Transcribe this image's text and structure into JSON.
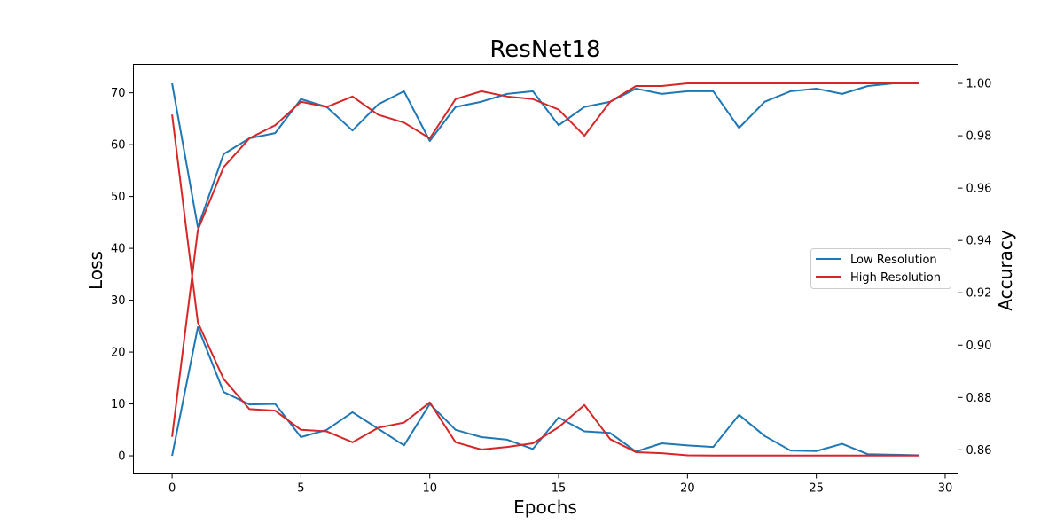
{
  "chart_data": {
    "type": "line",
    "title": "ResNet18",
    "xlabel": "Epochs",
    "ylabel_left": "Loss",
    "ylabel_right": "Accuracy",
    "x": [
      0,
      1,
      2,
      3,
      4,
      5,
      6,
      7,
      8,
      9,
      10,
      11,
      12,
      13,
      14,
      15,
      16,
      17,
      18,
      19,
      20,
      21,
      22,
      23,
      24,
      25,
      26,
      27,
      28,
      29
    ],
    "xlim": [
      -1.5,
      30.5
    ],
    "xticks": [
      0,
      5,
      10,
      15,
      20,
      25,
      30
    ],
    "ylim_left": [
      -3.5,
      75.5
    ],
    "yticks_left": [
      0,
      10,
      20,
      30,
      40,
      50,
      60,
      70
    ],
    "ylim_right": [
      0.8508,
      1.0073
    ],
    "yticks_right": [
      0.86,
      0.88,
      0.9,
      0.92,
      0.94,
      0.96,
      0.98,
      1.0
    ],
    "grid": false,
    "legend_position": "center-right",
    "legend": [
      "Low Resolution",
      "High Resolution"
    ],
    "series": [
      {
        "name": "Low Resolution",
        "color": "#1f77b4",
        "loss": [
          0.0,
          24.8,
          12.3,
          9.9,
          10.0,
          3.6,
          5.0,
          8.4,
          5.2,
          2.0,
          10.0,
          5.0,
          3.6,
          3.1,
          1.3,
          7.4,
          4.7,
          4.4,
          0.8,
          2.4,
          2.0,
          1.7,
          7.9,
          3.8,
          1.0,
          0.9,
          2.3,
          0.3,
          0.2,
          0.1
        ],
        "accuracy": [
          1.0,
          0.945,
          0.973,
          0.979,
          0.981,
          0.994,
          0.991,
          0.982,
          0.992,
          0.997,
          0.978,
          0.991,
          0.993,
          0.996,
          0.997,
          0.984,
          0.991,
          0.993,
          0.998,
          0.996,
          0.997,
          0.997,
          0.983,
          0.993,
          0.997,
          0.998,
          0.996,
          0.999,
          1.0,
          1.0
        ]
      },
      {
        "name": "High Resolution",
        "color": "#d62728",
        "loss": [
          65.8,
          25.7,
          14.8,
          9.0,
          8.7,
          5.0,
          4.7,
          2.6,
          5.4,
          6.4,
          10.3,
          2.6,
          1.2,
          1.7,
          2.4,
          5.5,
          9.8,
          3.2,
          0.7,
          0.5,
          0.1,
          0.05,
          0.05,
          0.05,
          0.05,
          0.05,
          0.05,
          0.05,
          0.05,
          0.05
        ],
        "accuracy": [
          0.865,
          0.944,
          0.968,
          0.979,
          0.984,
          0.993,
          0.991,
          0.995,
          0.988,
          0.985,
          0.979,
          0.994,
          0.997,
          0.995,
          0.994,
          0.99,
          0.98,
          0.993,
          0.999,
          0.999,
          1.0,
          1.0,
          1.0,
          1.0,
          1.0,
          1.0,
          1.0,
          1.0,
          1.0,
          1.0
        ]
      }
    ]
  }
}
